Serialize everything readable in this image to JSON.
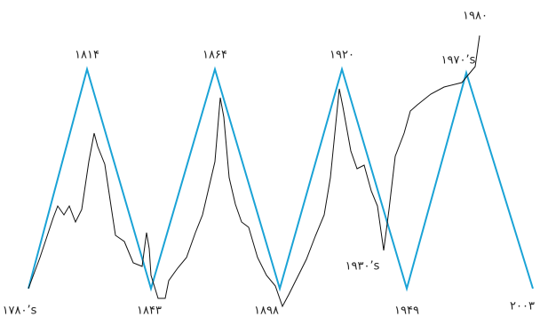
{
  "labels": {
    "top": [
      "۱۸۱۴",
      "۱۸۶۴",
      "۱۹۲۰",
      "۱۹۷۰’s",
      "۱۹۸۰"
    ],
    "bottom": [
      "۱۷۸۰’s",
      "۱۸۴۳",
      "۱۸۹۸",
      "۱۹۴۹",
      "۲۰۰۳"
    ],
    "middle": "۱۹۳۰’s"
  }
}
